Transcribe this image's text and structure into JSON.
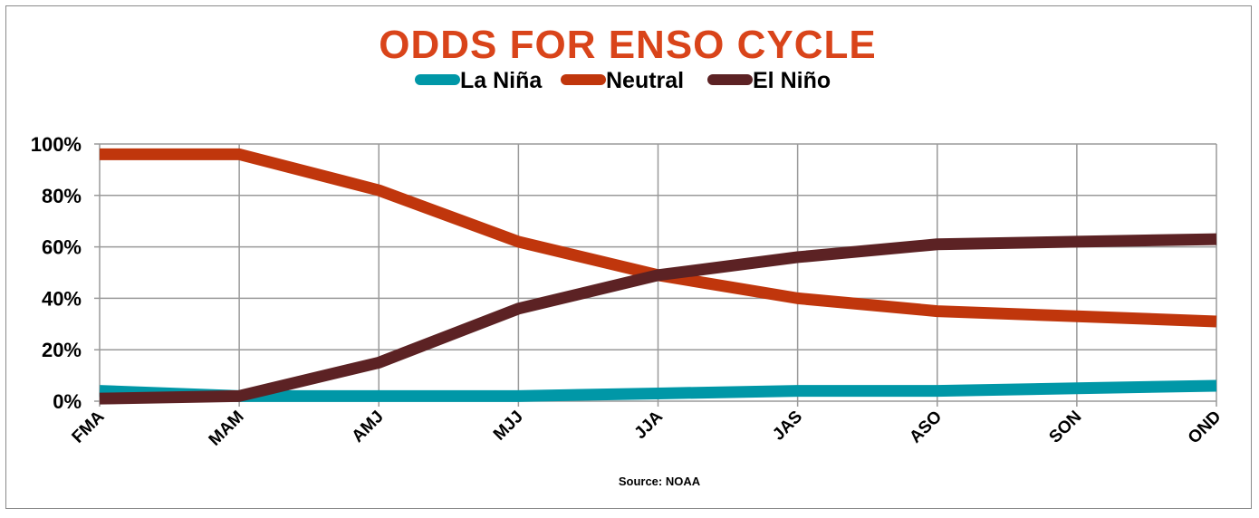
{
  "chart_data": {
    "type": "line",
    "title": "ODDS FOR ENSO CYCLE",
    "source": "Source: NOAA",
    "categories": [
      "FMA",
      "MAM",
      "AMJ",
      "MJJ",
      "JJA",
      "JAS",
      "ASO",
      "SON",
      "OND"
    ],
    "ylim": [
      0,
      100
    ],
    "yticks": [
      "0%",
      "20%",
      "40%",
      "60%",
      "80%",
      "100%"
    ],
    "grid": true,
    "legend_placement": "top",
    "series": [
      {
        "name": "La Niña",
        "color": "#0097a7",
        "values": [
          4,
          2,
          2,
          2,
          3,
          4,
          4,
          5,
          6
        ]
      },
      {
        "name": "Neutral",
        "color": "#c0360c",
        "values": [
          96,
          96,
          82,
          62,
          49,
          40,
          35,
          33,
          31
        ]
      },
      {
        "name": "El Niño",
        "color": "#5c2224",
        "values": [
          1,
          2,
          15,
          36,
          49,
          56,
          61,
          62,
          63
        ]
      }
    ],
    "title_color": "#d9441a"
  }
}
